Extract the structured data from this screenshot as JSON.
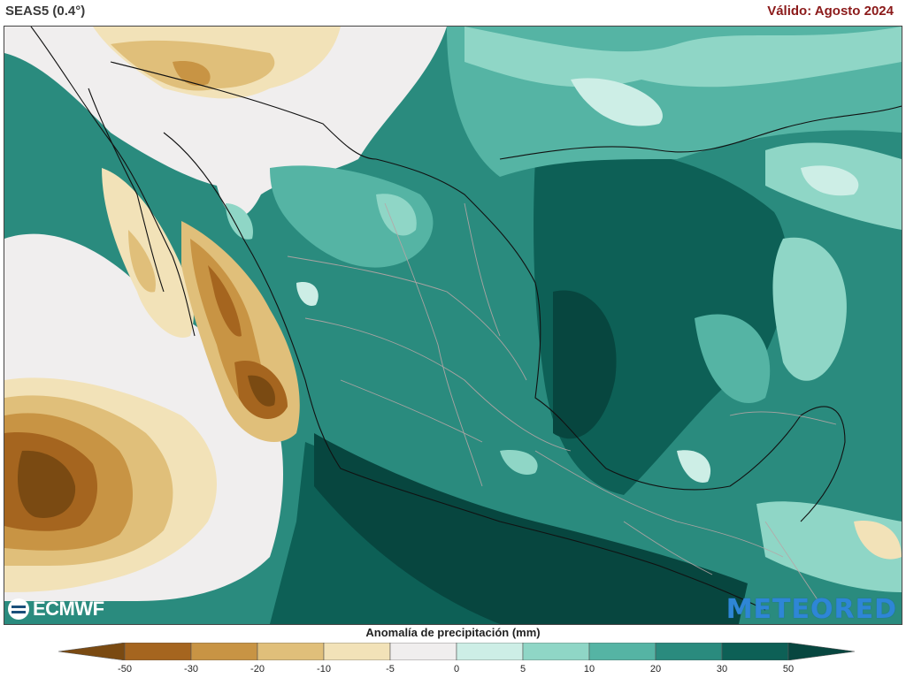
{
  "header": {
    "model": "SEAS5 (0.4°)",
    "valid": "Válido: Agosto 2024"
  },
  "logos": {
    "left": "ECMWF",
    "right": "METEORED"
  },
  "legend": {
    "title": "Anomalía de precipitación (mm)",
    "ticks": [
      "-50",
      "-30",
      "-20",
      "-10",
      "-5",
      "0",
      "5",
      "10",
      "20",
      "30",
      "50"
    ],
    "colors": [
      "#7a4a12",
      "#a5651f",
      "#c89444",
      "#e0bf7a",
      "#f2e2b8",
      "#f0eeee",
      "#cdeee6",
      "#8fd6c6",
      "#55b4a4",
      "#2a8b7e",
      "#0d6056",
      "#07463f"
    ]
  },
  "map": {
    "region": "México y Golfo de México",
    "variable": "precipitation-anomaly"
  }
}
